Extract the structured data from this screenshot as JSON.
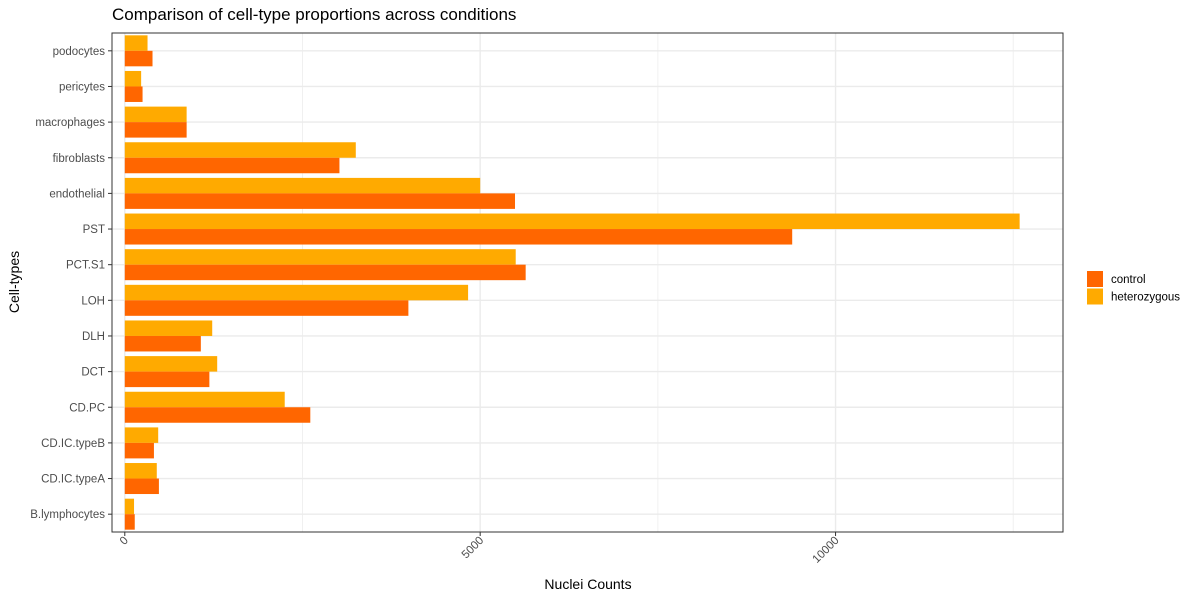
{
  "chart_data": {
    "type": "bar",
    "orientation": "horizontal",
    "title": "Comparison of cell-type proportions across conditions",
    "xlabel": "Nuclei Counts",
    "ylabel": "Cell-types",
    "xlim": [
      -180,
      13200
    ],
    "xticks": [
      0,
      5000,
      10000
    ],
    "xtick_labels": [
      "0",
      "5000",
      "10000"
    ],
    "grid": true,
    "legend_position": "right",
    "categories": [
      "podocytes",
      "pericytes",
      "macrophages",
      "fibroblasts",
      "endothelial",
      "PST",
      "PCT.S1",
      "LOH",
      "DLH",
      "DCT",
      "CD.PC",
      "CD.IC.typeB",
      "CD.IC.typeA",
      "B.lymphocytes"
    ],
    "series": [
      {
        "name": "control",
        "color": "#FF6600",
        "values": [
          390,
          250,
          870,
          3020,
          5490,
          9390,
          5640,
          3990,
          1070,
          1190,
          2610,
          410,
          480,
          140
        ]
      },
      {
        "name": "heterozygous",
        "color": "#FFAA00",
        "values": [
          320,
          230,
          870,
          3250,
          5000,
          12590,
          5500,
          4830,
          1230,
          1300,
          2250,
          470,
          450,
          130
        ]
      }
    ]
  }
}
